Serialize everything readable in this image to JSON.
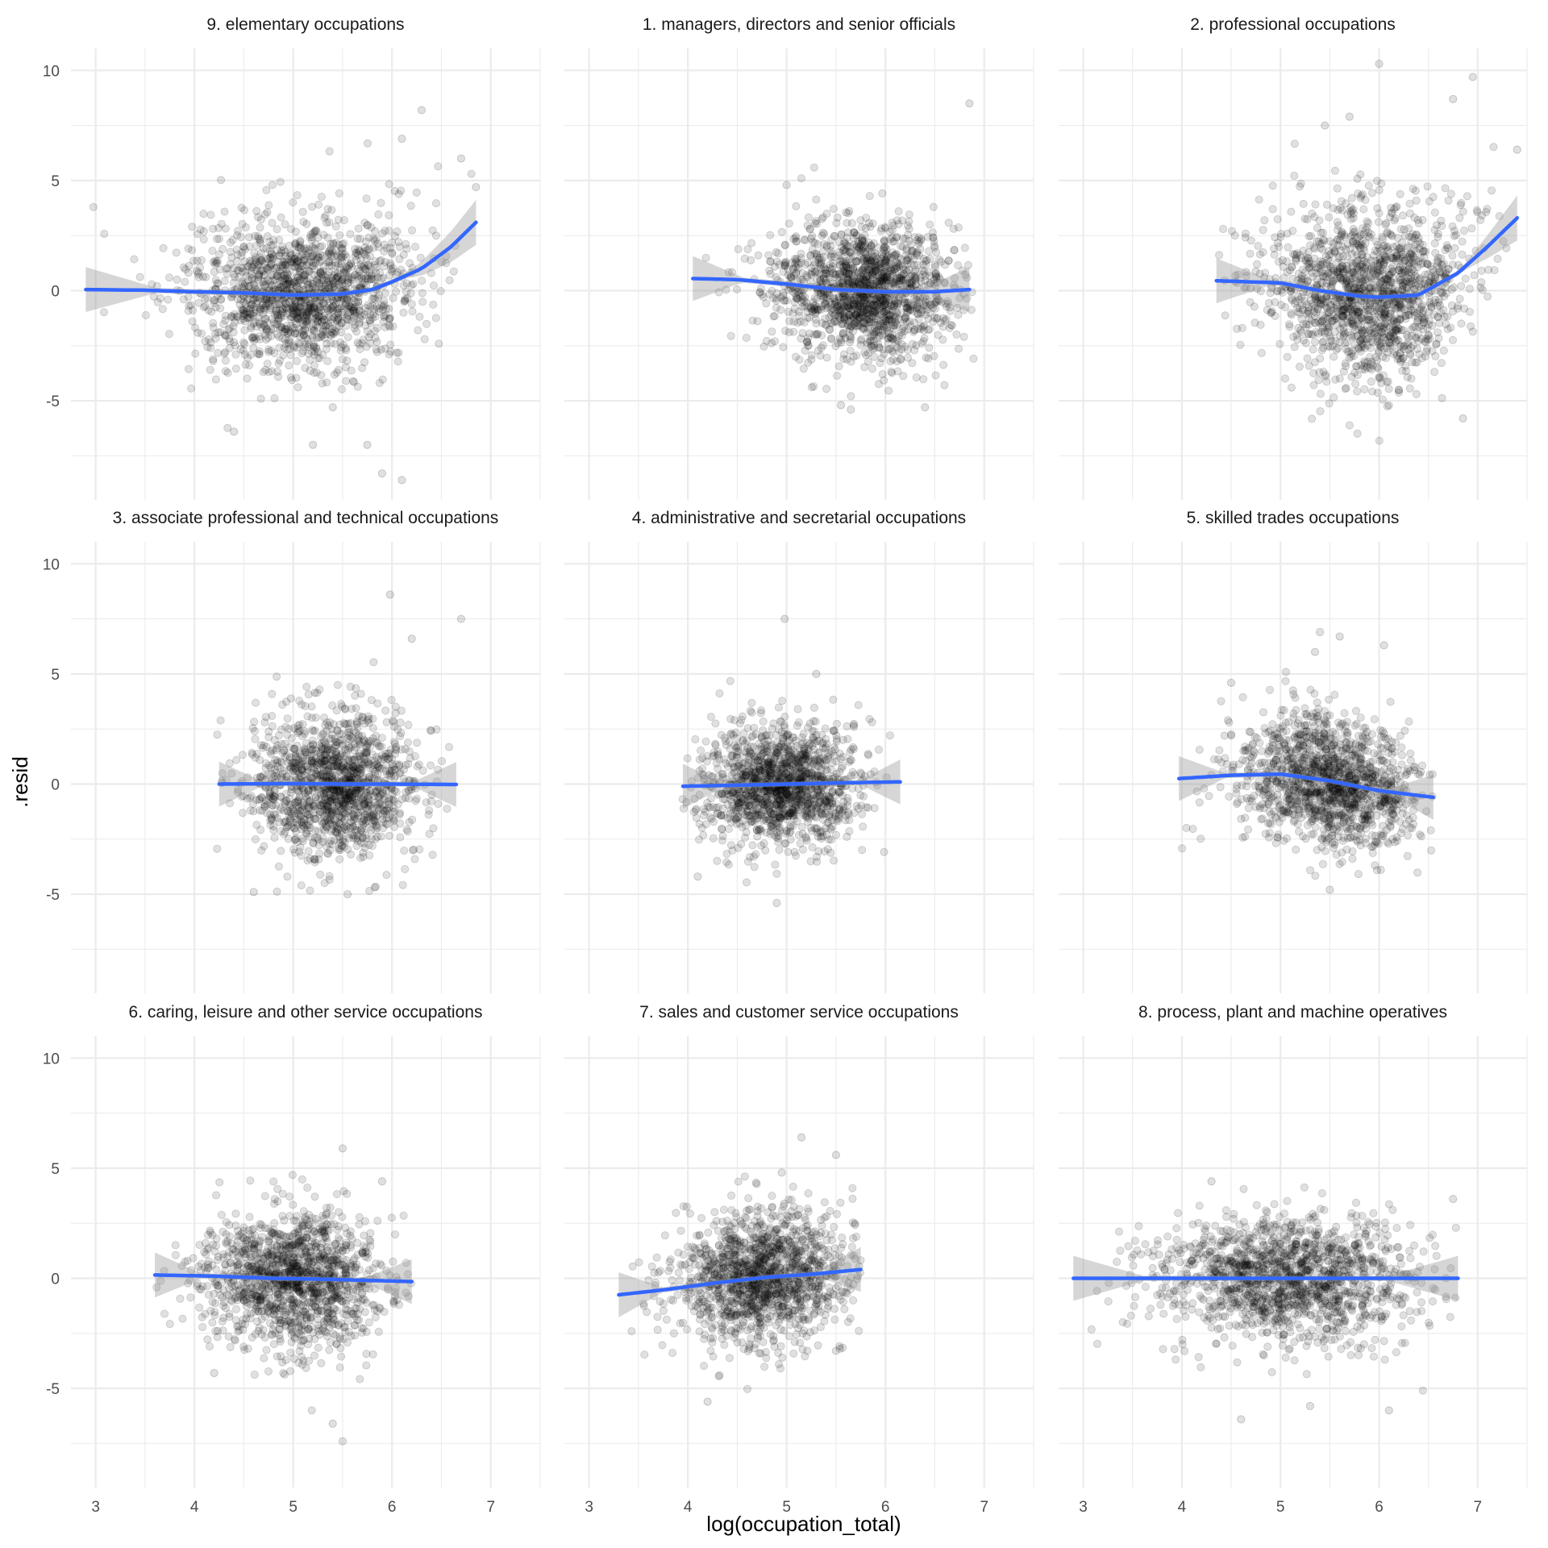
{
  "chart_data": {
    "type": "scatter",
    "layout": "facet-wrap 3x3",
    "xlabel": "log(occupation_total)",
    "ylabel": ".resid",
    "xlim": [
      2.75,
      7.5
    ],
    "ylim": [
      -9.5,
      11.0
    ],
    "x_ticks": [
      3,
      4,
      5,
      6,
      7
    ],
    "y_ticks": [
      -5,
      0,
      5,
      10
    ],
    "grid": true,
    "colors": {
      "points": "#000000",
      "smooth_line": "#3366FF",
      "ribbon": "#999999",
      "grid": "#ebebeb"
    },
    "point_alpha": 0.12,
    "smooth_method": "loess",
    "panels": [
      {
        "label": "9. elementary occupations",
        "n_points": 1500,
        "x_range": [
          2.9,
          6.9
        ],
        "x_center": 5.1,
        "x_sd": 0.55,
        "resid_sd": 1.7,
        "outliers": [
          [
            6.3,
            8.2
          ],
          [
            6.1,
            6.9
          ],
          [
            6.7,
            6.0
          ],
          [
            6.85,
            4.7
          ],
          [
            5.9,
            -8.3
          ],
          [
            6.1,
            -8.6
          ],
          [
            5.4,
            -5.3
          ],
          [
            4.4,
            -6.4
          ],
          [
            5.75,
            -7.0
          ],
          [
            5.2,
            -7.0
          ]
        ],
        "smooth": {
          "x": [
            2.9,
            3.5,
            4.0,
            4.5,
            5.0,
            5.5,
            5.8,
            6.0,
            6.3,
            6.6,
            6.85
          ],
          "y": [
            0.05,
            0.02,
            -0.05,
            -0.1,
            -0.2,
            -0.15,
            0.05,
            0.4,
            1.0,
            2.0,
            3.1
          ]
        }
      },
      {
        "label": "1. managers, directors and senior officials",
        "n_points": 1500,
        "x_range": [
          4.0,
          6.9
        ],
        "x_center": 5.8,
        "x_sd": 0.45,
        "resid_sd": 1.5,
        "outliers": [
          [
            6.85,
            8.5
          ],
          [
            5.0,
            4.8
          ],
          [
            5.65,
            -5.4
          ],
          [
            6.4,
            -5.3
          ],
          [
            5.55,
            -5.2
          ]
        ],
        "smooth": {
          "x": [
            4.05,
            4.5,
            5.0,
            5.5,
            6.0,
            6.5,
            6.85
          ],
          "y": [
            0.55,
            0.5,
            0.3,
            0.05,
            -0.05,
            -0.05,
            0.05
          ]
        }
      },
      {
        "label": "2. professional occupations",
        "n_points": 1500,
        "x_range": [
          4.3,
          7.4
        ],
        "x_center": 5.9,
        "x_sd": 0.5,
        "resid_sd": 1.9,
        "outliers": [
          [
            6.0,
            10.3
          ],
          [
            6.95,
            9.7
          ],
          [
            6.75,
            8.7
          ],
          [
            5.45,
            7.5
          ],
          [
            5.7,
            7.9
          ],
          [
            7.4,
            6.4
          ],
          [
            6.85,
            -5.8
          ],
          [
            6.2,
            -4.5
          ]
        ],
        "smooth": {
          "x": [
            4.35,
            5.0,
            5.4,
            5.8,
            6.0,
            6.4,
            6.8,
            7.1,
            7.4
          ],
          "y": [
            0.45,
            0.35,
            0.0,
            -0.25,
            -0.3,
            -0.2,
            0.8,
            2.0,
            3.3
          ]
        }
      },
      {
        "label": "3. associate professional and technical occupations",
        "n_points": 1400,
        "x_range": [
          4.2,
          6.7
        ],
        "x_center": 5.4,
        "x_sd": 0.42,
        "resid_sd": 1.6,
        "outliers": [
          [
            5.98,
            8.6
          ],
          [
            6.7,
            7.5
          ],
          [
            4.6,
            -4.9
          ],
          [
            5.55,
            -5.0
          ],
          [
            6.2,
            6.6
          ]
        ],
        "smooth": {
          "x": [
            4.25,
            5.0,
            5.5,
            6.0,
            6.65
          ],
          "y": [
            0.0,
            0.02,
            0.0,
            0.0,
            -0.02
          ]
        }
      },
      {
        "label": "4. administrative and secretarial occupations",
        "n_points": 1400,
        "x_range": [
          3.9,
          6.15
        ],
        "x_center": 4.95,
        "x_sd": 0.38,
        "resid_sd": 1.35,
        "outliers": [
          [
            4.98,
            7.5
          ],
          [
            5.3,
            5.0
          ],
          [
            4.9,
            -5.4
          ],
          [
            4.1,
            -4.2
          ]
        ],
        "smooth": {
          "x": [
            3.95,
            4.5,
            5.0,
            5.5,
            6.15
          ],
          "y": [
            -0.1,
            -0.05,
            0.0,
            0.05,
            0.1
          ]
        }
      },
      {
        "label": "5. skilled trades occupations",
        "n_points": 1400,
        "x_range": [
          3.95,
          6.55
        ],
        "x_center": 5.5,
        "x_sd": 0.45,
        "resid_sd": 1.45,
        "outliers": [
          [
            5.4,
            6.9
          ],
          [
            5.6,
            6.7
          ],
          [
            6.05,
            6.3
          ],
          [
            5.35,
            6.0
          ],
          [
            5.5,
            -4.8
          ],
          [
            4.5,
            4.6
          ]
        ],
        "smooth": {
          "x": [
            3.97,
            4.5,
            5.0,
            5.5,
            6.0,
            6.55
          ],
          "y": [
            0.25,
            0.4,
            0.45,
            0.15,
            -0.3,
            -0.6
          ]
        }
      },
      {
        "label": "6. caring, leisure and other service occupations",
        "n_points": 1400,
        "x_range": [
          3.6,
          6.2
        ],
        "x_center": 5.0,
        "x_sd": 0.45,
        "resid_sd": 1.5,
        "outliers": [
          [
            5.5,
            5.9
          ],
          [
            5.5,
            -7.4
          ],
          [
            5.4,
            -6.6
          ],
          [
            5.9,
            4.4
          ],
          [
            4.2,
            -4.3
          ]
        ],
        "smooth": {
          "x": [
            3.6,
            4.2,
            4.8,
            5.4,
            6.2
          ],
          "y": [
            0.15,
            0.1,
            0.0,
            -0.05,
            -0.15
          ]
        }
      },
      {
        "label": "7. sales and customer service occupations",
        "n_points": 1400,
        "x_range": [
          3.3,
          5.75
        ],
        "x_center": 4.75,
        "x_sd": 0.45,
        "resid_sd": 1.45,
        "outliers": [
          [
            5.15,
            6.4
          ],
          [
            5.5,
            5.6
          ],
          [
            4.2,
            -5.6
          ],
          [
            4.95,
            4.8
          ]
        ],
        "smooth": {
          "x": [
            3.3,
            3.8,
            4.3,
            4.8,
            5.3,
            5.75
          ],
          "y": [
            -0.75,
            -0.5,
            -0.2,
            0.05,
            0.2,
            0.4
          ]
        }
      },
      {
        "label": "8. process, plant and machine operatives",
        "n_points": 1500,
        "x_range": [
          2.9,
          6.8
        ],
        "x_center": 5.1,
        "x_sd": 0.65,
        "resid_sd": 1.4,
        "outliers": [
          [
            4.6,
            -6.4
          ],
          [
            6.1,
            -6.0
          ],
          [
            5.3,
            -5.8
          ],
          [
            6.75,
            3.6
          ],
          [
            4.3,
            4.4
          ]
        ],
        "smooth": {
          "x": [
            2.9,
            4.0,
            5.0,
            6.0,
            6.8
          ],
          "y": [
            0.0,
            0.0,
            0.0,
            0.0,
            0.0
          ]
        }
      }
    ]
  }
}
